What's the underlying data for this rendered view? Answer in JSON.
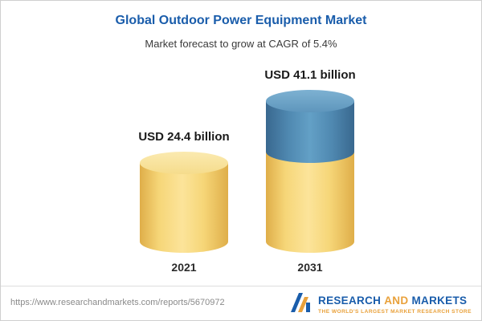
{
  "chart_data": {
    "type": "bar",
    "title": "Global Outdoor Power Equipment Market",
    "subtitle": "Market forecast to grow at CAGR of 5.4%",
    "categories": [
      "2021",
      "2031"
    ],
    "values": [
      24.4,
      41.1
    ],
    "value_labels": [
      "USD 24.4 billion",
      "USD 41.1 billion"
    ],
    "unit": "USD billion",
    "ylim": [
      0,
      45
    ],
    "grid": false,
    "legend": "none",
    "bar_style": "3d-cylinder",
    "colors": {
      "base_segment": "#f5d36b",
      "growth_segment": "#4d87ae"
    }
  },
  "footer": {
    "url": "https://www.researchandmarkets.com/reports/5670972",
    "logo": {
      "word1": "RESEARCH",
      "word2": "AND",
      "word3": "MARKETS",
      "tagline": "THE WORLD'S LARGEST MARKET RESEARCH STORE"
    }
  },
  "colors": {
    "title_blue": "#1a5dab",
    "logo_gold": "#e9a13b"
  }
}
